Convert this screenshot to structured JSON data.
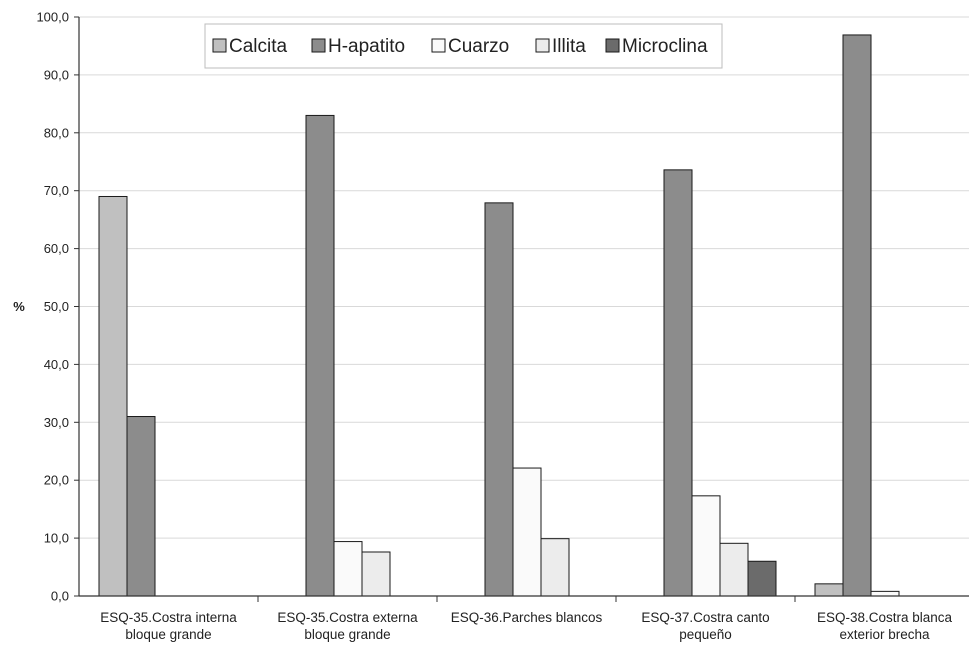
{
  "chart_data": {
    "type": "bar",
    "title": "",
    "xlabel": "",
    "ylabel": "%",
    "ylim": [
      0,
      100
    ],
    "yticks": [
      "0,0",
      "10,0",
      "20,0",
      "30,0",
      "40,0",
      "50,0",
      "60,0",
      "70,0",
      "80,0",
      "90,0",
      "100,0"
    ],
    "grid": true,
    "legend_position": "top-center",
    "categories": [
      [
        "ESQ-35.Costra interna",
        "bloque grande"
      ],
      [
        "ESQ-35.Costra externa",
        "bloque grande"
      ],
      [
        "ESQ-36.Parches blancos"
      ],
      [
        "ESQ-37.Costra canto",
        "pequeño"
      ],
      [
        "ESQ-38.Costra blanca",
        "exterior brecha"
      ]
    ],
    "series": [
      {
        "name": "Calcita",
        "color": "#c0c0c0",
        "values": [
          69.0,
          0,
          0,
          0,
          2.1
        ]
      },
      {
        "name": "H-apatito",
        "color": "#8c8c8c",
        "values": [
          31.0,
          83.0,
          67.9,
          73.6,
          96.9
        ]
      },
      {
        "name": "Cuarzo",
        "color": "#fafafa",
        "values": [
          0,
          9.4,
          22.1,
          17.3,
          0.8
        ]
      },
      {
        "name": "Illita",
        "color": "#ececec",
        "values": [
          0,
          7.6,
          9.9,
          9.1,
          0
        ]
      },
      {
        "name": "Microclina",
        "color": "#6b6b6b",
        "values": [
          0,
          0,
          0,
          6.0,
          0
        ]
      }
    ]
  }
}
